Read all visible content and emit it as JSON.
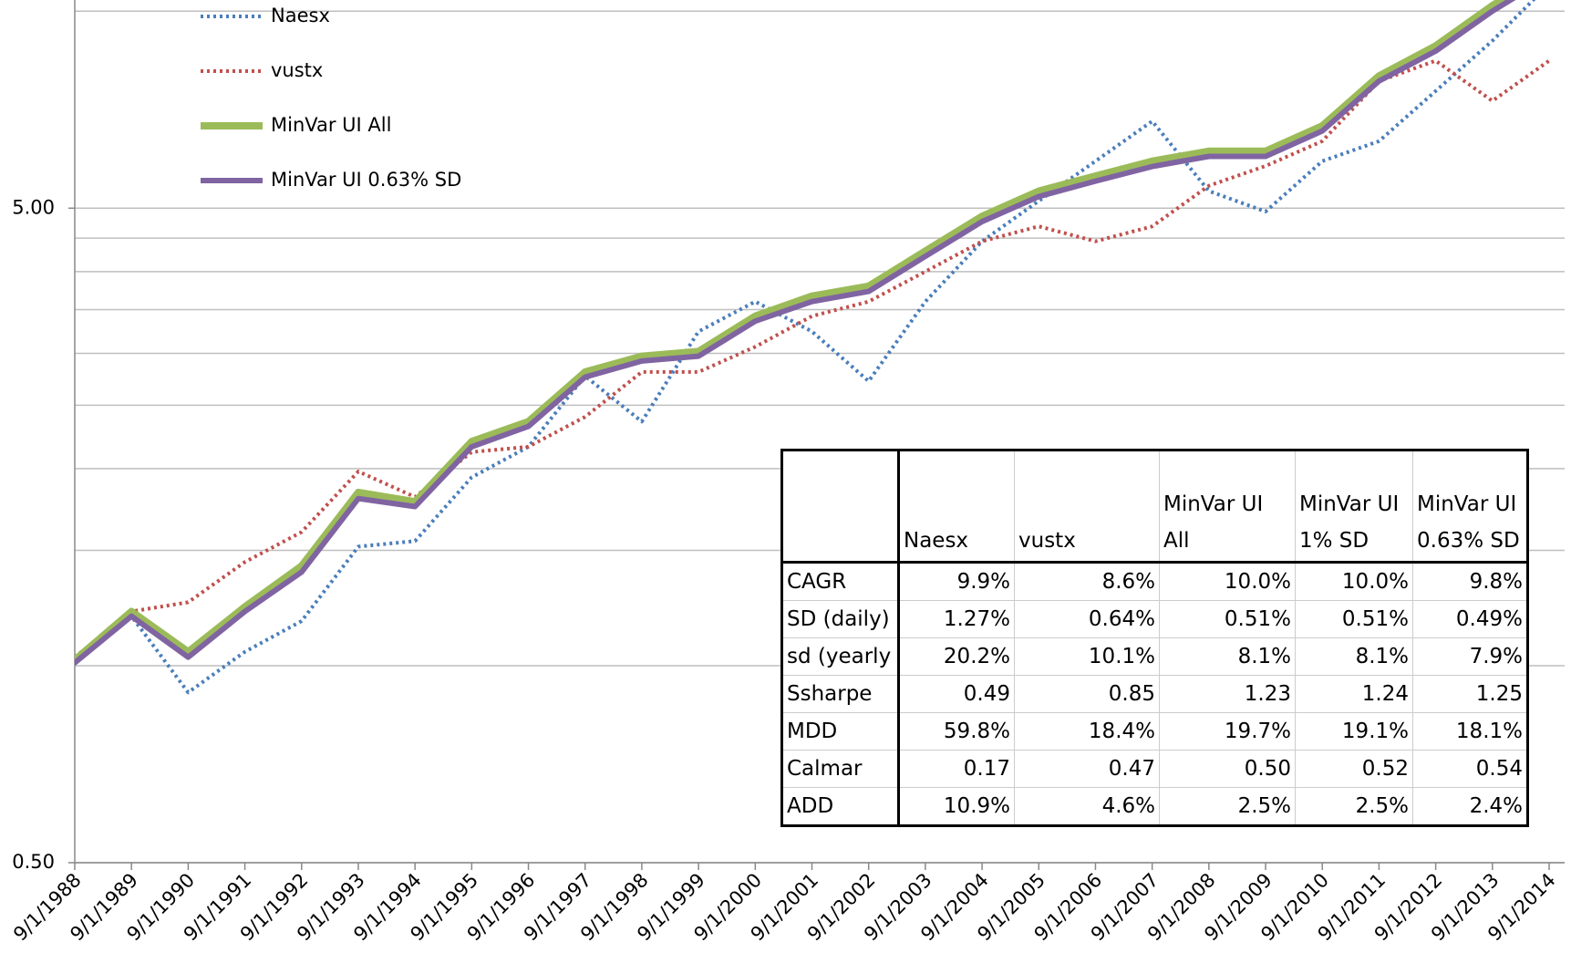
{
  "chart_data": {
    "type": "line",
    "x": [
      "9/1/1988",
      "9/1/1989",
      "9/1/1990",
      "9/1/1991",
      "9/1/1992",
      "9/1/1993",
      "9/1/1994",
      "9/1/1995",
      "9/1/1996",
      "9/1/1997",
      "9/1/1998",
      "9/1/1999",
      "9/1/2000",
      "9/1/2001",
      "9/1/2002",
      "9/1/2003",
      "9/1/2004",
      "9/1/2005",
      "9/1/2006",
      "9/1/2007",
      "9/1/2008",
      "9/1/2009",
      "9/1/2010",
      "9/1/2011",
      "9/1/2012",
      "9/1/2013",
      "9/1/2014"
    ],
    "series": [
      {
        "name": "Naesx",
        "color": "#4a7ebb",
        "style": "dotted",
        "width": 4,
        "values": [
          1.01,
          1.19,
          0.91,
          1.05,
          1.17,
          1.52,
          1.55,
          1.94,
          2.16,
          2.77,
          2.36,
          3.24,
          3.6,
          3.24,
          2.72,
          3.6,
          4.45,
          5.13,
          5.9,
          6.79,
          5.31,
          4.94,
          5.9,
          6.33,
          7.55,
          9.01,
          11.0
        ]
      },
      {
        "name": "vustx",
        "color": "#c0504d",
        "style": "dotted",
        "width": 4,
        "values": [
          1.03,
          1.21,
          1.25,
          1.44,
          1.6,
          1.98,
          1.81,
          2.12,
          2.16,
          2.4,
          2.81,
          2.81,
          3.07,
          3.42,
          3.6,
          4.0,
          4.45,
          4.69,
          4.45,
          4.69,
          5.41,
          5.8,
          6.33,
          7.82,
          8.4,
          7.29,
          8.4
        ]
      },
      {
        "name": "MinVar UI All",
        "color": "#9bbb59",
        "style": "solid",
        "width": 8,
        "values": [
          1.02,
          1.21,
          1.05,
          1.23,
          1.42,
          1.84,
          1.78,
          2.2,
          2.36,
          2.81,
          2.97,
          3.02,
          3.42,
          3.67,
          3.8,
          4.3,
          4.86,
          5.31,
          5.6,
          5.9,
          6.11,
          6.11,
          6.68,
          7.96,
          8.85,
          10.2,
          11.5
        ]
      },
      {
        "name": "MinVar UI 0.63% SD",
        "color": "#8064a2",
        "style": "solid",
        "width": 6,
        "values": [
          1.01,
          1.19,
          1.03,
          1.21,
          1.39,
          1.8,
          1.75,
          2.16,
          2.32,
          2.76,
          2.92,
          2.97,
          3.36,
          3.6,
          3.73,
          4.22,
          4.77,
          5.21,
          5.5,
          5.79,
          6.0,
          6.0,
          6.56,
          7.82,
          8.69,
          10.0,
          11.3
        ]
      }
    ],
    "ylim": [
      0.5,
      10.4
    ],
    "log_scale": true,
    "yticks": [
      {
        "value": 0.5,
        "label": "0.50"
      },
      {
        "value": 5,
        "label": "5.00"
      }
    ],
    "minor_gridlines": [
      1,
      1.5,
      2,
      2.5,
      3,
      3.5,
      4,
      4.5,
      10
    ],
    "grid": true,
    "legend_position": "upper left"
  },
  "table": {
    "columns": [
      "Naesx",
      "vustx",
      "MinVar UI All",
      "MinVar UI 1% SD",
      "MinVar UI 0.63% SD"
    ],
    "rows": [
      [
        "CAGR",
        "9.9%",
        "8.6%",
        "10.0%",
        "10.0%",
        "9.8%"
      ],
      [
        "SD (daily)",
        "1.27%",
        "0.64%",
        "0.51%",
        "0.51%",
        "0.49%"
      ],
      [
        "sd (yearly",
        "20.2%",
        "10.1%",
        "8.1%",
        "8.1%",
        "7.9%"
      ],
      [
        "Ssharpe",
        "0.49",
        "0.85",
        "1.23",
        "1.24",
        "1.25"
      ],
      [
        "MDD",
        "59.8%",
        "18.4%",
        "19.7%",
        "19.1%",
        "18.1%"
      ],
      [
        "Calmar",
        "0.17",
        "0.47",
        "0.50",
        "0.52",
        "0.54"
      ],
      [
        "ADD",
        "10.9%",
        "4.6%",
        "2.5%",
        "2.5%",
        "2.4%"
      ]
    ]
  }
}
